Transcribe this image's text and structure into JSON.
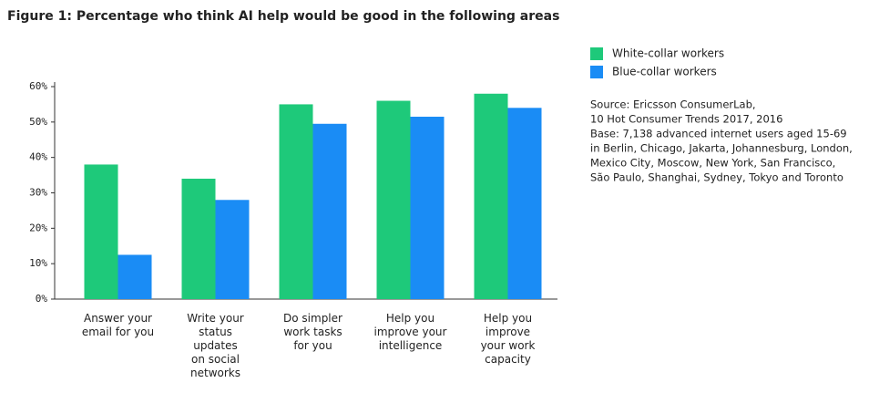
{
  "chart_data": {
    "type": "bar",
    "title": "Figure 1: Percentage who think AI help would be good in the following areas",
    "categories": [
      "Answer your\nemail for you",
      "Write your\nstatus\nupdates\non social\nnetworks",
      "Do simpler\nwork tasks\nfor you",
      "Help you\nimprove your\nintelligence",
      "Help you\nimprove\nyour work\ncapacity"
    ],
    "series": [
      {
        "name": "White-collar workers",
        "color": "#1ec97a",
        "values": [
          38,
          34,
          55,
          56,
          58
        ]
      },
      {
        "name": "Blue-collar workers",
        "color": "#1a8cf5",
        "values": [
          12.5,
          28,
          49.5,
          51.5,
          54
        ]
      }
    ],
    "ylim": [
      0,
      60
    ],
    "yticks": [
      {
        "value": 0,
        "label": "0%"
      },
      {
        "value": 10,
        "label": "10%"
      },
      {
        "value": 20,
        "label": "20%"
      },
      {
        "value": 30,
        "label": "30%"
      },
      {
        "value": 40,
        "label": "40%"
      },
      {
        "value": 50,
        "label": "50%"
      },
      {
        "value": 60,
        "label": "60%"
      }
    ],
    "legend": "right",
    "source": [
      "Source: Ericsson ConsumerLab,",
      "10 Hot Consumer Trends 2017, 2016",
      "Base: 7,138 advanced internet users aged 15-69",
      "in Berlin, Chicago, Jakarta, Johannesburg, London,",
      "Mexico City, Moscow, New York, San Francisco,",
      "São Paulo, Shanghai, Sydney, Tokyo and Toronto"
    ]
  }
}
